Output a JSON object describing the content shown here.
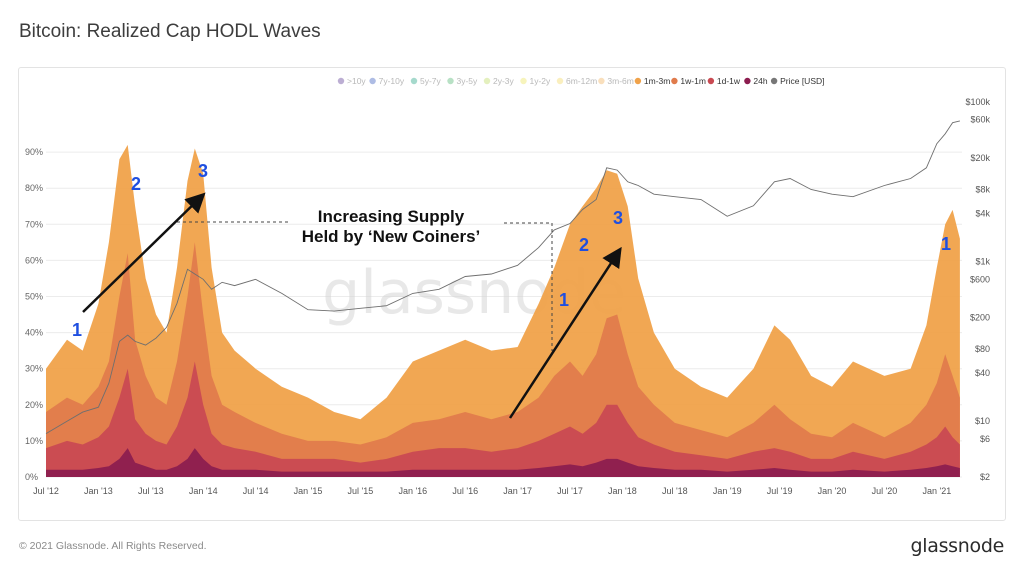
{
  "title": "Bitcoin: Realized Cap HODL Waves",
  "footer": {
    "copyright": "© 2021 Glassnode. All Rights Reserved.",
    "brand": "glassnode"
  },
  "watermark": "glassnode",
  "chart_data": {
    "type": "area",
    "title": "Bitcoin: Realized Cap HODL Waves",
    "legend_position": "top-right",
    "legend": [
      {
        "name": ">10y",
        "color": "#7a5ea8",
        "active": false
      },
      {
        "name": "7y-10y",
        "color": "#5e79c9",
        "active": false
      },
      {
        "name": "5y-7y",
        "color": "#4bb39a",
        "active": false
      },
      {
        "name": "3y-5y",
        "color": "#71c38b",
        "active": false
      },
      {
        "name": "2y-3y",
        "color": "#c9e27e",
        "active": false
      },
      {
        "name": "1y-2y",
        "color": "#f0ea7a",
        "active": false
      },
      {
        "name": "6m-12m",
        "color": "#f6e07d",
        "active": false
      },
      {
        "name": "3m-6m",
        "color": "#f3c07a",
        "active": false
      },
      {
        "name": "1m-3m",
        "color": "#f0a24a",
        "active": true
      },
      {
        "name": "1w-1m",
        "color": "#e07b4c",
        "active": true
      },
      {
        "name": "1d-1w",
        "color": "#c94a52",
        "active": true
      },
      {
        "name": "24h",
        "color": "#8c1d4f",
        "active": true
      },
      {
        "name": "Price [USD]",
        "color": "#777777",
        "active": true
      }
    ],
    "x_ticks": [
      "Jul '12",
      "Jan '13",
      "Jul '13",
      "Jan '14",
      "Jul '14",
      "Jan '15",
      "Jul '15",
      "Jan '16",
      "Jul '16",
      "Jan '17",
      "Jul '17",
      "Jan '18",
      "Jul '18",
      "Jan '19",
      "Jul '19",
      "Jan '20",
      "Jul '20",
      "Jan '21"
    ],
    "y_left_ticks": [
      "0%",
      "10%",
      "20%",
      "30%",
      "40%",
      "50%",
      "60%",
      "70%",
      "80%",
      "90%"
    ],
    "y_left_range": [
      0,
      100
    ],
    "y_right_ticks": [
      "$2",
      "$6",
      "$10",
      "$40",
      "$80",
      "$200",
      "$600",
      "$1k",
      "$4k",
      "$8k",
      "$20k",
      "$60k",
      "$100k"
    ],
    "y_right_scale": "log",
    "grid": true,
    "x": [
      2012.5,
      2012.7,
      2012.85,
      2013.0,
      2013.1,
      2013.2,
      2013.28,
      2013.35,
      2013.45,
      2013.55,
      2013.65,
      2013.75,
      2013.85,
      2013.92,
      2014.0,
      2014.08,
      2014.18,
      2014.3,
      2014.5,
      2014.75,
      2015.0,
      2015.25,
      2015.5,
      2015.75,
      2016.0,
      2016.25,
      2016.5,
      2016.75,
      2017.0,
      2017.2,
      2017.35,
      2017.5,
      2017.62,
      2017.75,
      2017.85,
      2017.95,
      2018.05,
      2018.15,
      2018.3,
      2018.5,
      2018.75,
      2019.0,
      2019.25,
      2019.45,
      2019.6,
      2019.8,
      2020.0,
      2020.2,
      2020.5,
      2020.75,
      2020.9,
      2021.0,
      2021.08,
      2021.15,
      2021.22
    ],
    "series": [
      {
        "name": "24h",
        "values": [
          2,
          2,
          2,
          2.5,
          3,
          5,
          8,
          4,
          3,
          2,
          2,
          3,
          5,
          8,
          5,
          3,
          2,
          2,
          2,
          1.5,
          1.5,
          1.5,
          1.5,
          1.5,
          2,
          2,
          2,
          2,
          2,
          2.5,
          3,
          3.5,
          3,
          4,
          5,
          5,
          4,
          3,
          2.5,
          2,
          2,
          1.5,
          2,
          2.5,
          2,
          1.5,
          1.5,
          2,
          1.5,
          2,
          2.5,
          3,
          3.5,
          3,
          2.5
        ]
      },
      {
        "name": "1d-1w",
        "values": [
          8,
          10,
          9,
          11,
          14,
          22,
          30,
          16,
          12,
          10,
          9,
          14,
          22,
          32,
          20,
          12,
          9,
          8,
          7,
          5,
          5,
          5,
          4,
          5,
          7,
          8,
          8,
          7,
          8,
          10,
          12,
          14,
          12,
          15,
          20,
          20,
          15,
          11,
          9,
          7,
          6,
          5,
          7,
          8,
          7,
          5,
          5,
          7,
          5,
          7,
          9,
          11,
          14,
          11,
          9
        ]
      },
      {
        "name": "1w-1m",
        "values": [
          18,
          22,
          20,
          25,
          32,
          50,
          62,
          38,
          28,
          22,
          20,
          32,
          50,
          65,
          45,
          28,
          20,
          18,
          15,
          12,
          10,
          10,
          9,
          11,
          15,
          16,
          18,
          16,
          18,
          22,
          28,
          32,
          28,
          34,
          44,
          45,
          34,
          25,
          20,
          15,
          13,
          11,
          15,
          20,
          16,
          12,
          11,
          15,
          11,
          15,
          20,
          26,
          34,
          28,
          22
        ]
      },
      {
        "name": "1m-3m",
        "values": [
          30,
          38,
          35,
          48,
          65,
          88,
          92,
          75,
          55,
          45,
          40,
          58,
          82,
          91,
          84,
          58,
          40,
          35,
          30,
          25,
          22,
          18,
          16,
          22,
          32,
          35,
          38,
          35,
          36,
          48,
          58,
          70,
          75,
          80,
          85,
          84,
          75,
          55,
          40,
          30,
          25,
          22,
          30,
          42,
          38,
          28,
          25,
          32,
          28,
          30,
          42,
          58,
          70,
          74,
          66
        ]
      },
      {
        "name": "Price [USD]",
        "values": [
          7,
          10,
          13,
          15,
          30,
          100,
          120,
          100,
          90,
          110,
          150,
          300,
          800,
          700,
          600,
          450,
          550,
          500,
          600,
          400,
          250,
          240,
          260,
          280,
          400,
          450,
          650,
          700,
          900,
          1500,
          2500,
          3000,
          4500,
          6000,
          15000,
          14000,
          10000,
          9000,
          7000,
          6500,
          6000,
          3700,
          5000,
          10000,
          11000,
          8000,
          7000,
          6500,
          9000,
          11000,
          15000,
          30000,
          40000,
          55000,
          58000
        ]
      }
    ],
    "annotations": [
      {
        "text": "Increasing Supply\nHeld by ‘New Coiners’"
      },
      {
        "text": "1"
      },
      {
        "text": "2"
      },
      {
        "text": "3"
      },
      {
        "text": "1"
      },
      {
        "text": "2"
      },
      {
        "text": "3"
      },
      {
        "text": "1"
      }
    ]
  }
}
